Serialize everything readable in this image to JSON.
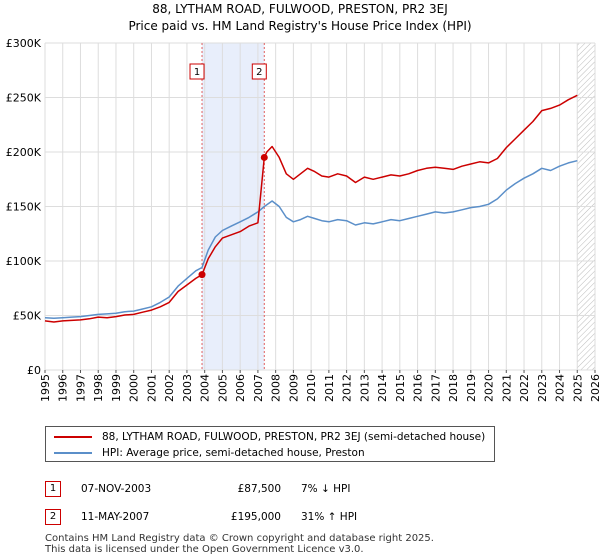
{
  "titles": {
    "line1": "88, LYTHAM ROAD, FULWOOD, PRESTON, PR2 3EJ",
    "line2": "Price paid vs. HM Land Registry's House Price Index (HPI)"
  },
  "chart_data": {
    "type": "line",
    "xlim": [
      1995.0,
      2026.0
    ],
    "ylim": [
      0,
      300000
    ],
    "y_ticks": [
      0,
      50000,
      100000,
      150000,
      200000,
      250000,
      300000
    ],
    "y_tick_labels": [
      "£0",
      "£50K",
      "£100K",
      "£150K",
      "£200K",
      "£250K",
      "£300K"
    ],
    "x_ticks": [
      1995,
      1996,
      1997,
      1998,
      1999,
      2000,
      2001,
      2002,
      2003,
      2004,
      2005,
      2006,
      2007,
      2008,
      2009,
      2010,
      2011,
      2012,
      2013,
      2014,
      2015,
      2016,
      2017,
      2018,
      2019,
      2020,
      2021,
      2022,
      2023,
      2024,
      2025,
      2026
    ],
    "x_tick_labels": [
      "1995",
      "1996",
      "1997",
      "1998",
      "1999",
      "2000",
      "2001",
      "2002",
      "2003",
      "2004",
      "2005",
      "2006",
      "2007",
      "2008",
      "2009",
      "2010",
      "2011",
      "2012",
      "2013",
      "2014",
      "2015",
      "2016",
      "2017",
      "2018",
      "2019",
      "2020",
      "2021",
      "2022",
      "2023",
      "2024",
      "2025",
      "2026"
    ],
    "grid": true,
    "shaded_region": [
      2003.85,
      2007.36
    ],
    "forecast_start": 2025.0,
    "series": [
      {
        "name": "88, LYTHAM ROAD, FULWOOD, PRESTON, PR2 3EJ (semi-detached house)",
        "color": "#cc0000",
        "x": [
          1995.0,
          1995.5,
          1996.0,
          1996.5,
          1997.0,
          1997.5,
          1998.0,
          1998.5,
          1999.0,
          1999.5,
          2000.0,
          2000.5,
          2001.0,
          2001.5,
          2002.0,
          2002.5,
          2003.0,
          2003.5,
          2003.85,
          2004.2,
          2004.6,
          2005.0,
          2005.5,
          2006.0,
          2006.5,
          2007.0,
          2007.36,
          2007.5,
          2007.8,
          2008.2,
          2008.6,
          2009.0,
          2009.4,
          2009.8,
          2010.2,
          2010.6,
          2011.0,
          2011.5,
          2012.0,
          2012.5,
          2013.0,
          2013.5,
          2014.0,
          2014.5,
          2015.0,
          2015.5,
          2016.0,
          2016.5,
          2017.0,
          2017.5,
          2018.0,
          2018.5,
          2019.0,
          2019.5,
          2020.0,
          2020.5,
          2021.0,
          2021.5,
          2022.0,
          2022.5,
          2023.0,
          2023.5,
          2024.0,
          2024.5,
          2025.0
        ],
        "values": [
          45000,
          44000,
          45000,
          45500,
          46000,
          47000,
          48500,
          48000,
          49000,
          50500,
          51000,
          53000,
          55000,
          58000,
          62000,
          72000,
          78000,
          84000,
          87500,
          102000,
          113000,
          121000,
          124000,
          127000,
          132000,
          135000,
          195000,
          200000,
          205000,
          195000,
          180000,
          175000,
          180000,
          185000,
          182000,
          178000,
          177000,
          180000,
          178000,
          172000,
          177000,
          175000,
          177000,
          179000,
          178000,
          180000,
          183000,
          185000,
          186000,
          185000,
          184000,
          187000,
          189000,
          191000,
          190000,
          194000,
          204000,
          212000,
          220000,
          228000,
          238000,
          240000,
          243000,
          248000,
          252000
        ]
      },
      {
        "name": "HPI: Average price, semi-detached house, Preston",
        "color": "#5b8fc9",
        "x": [
          1995.0,
          1995.5,
          1996.0,
          1996.5,
          1997.0,
          1997.5,
          1998.0,
          1998.5,
          1999.0,
          1999.5,
          2000.0,
          2000.5,
          2001.0,
          2001.5,
          2002.0,
          2002.5,
          2003.0,
          2003.5,
          2003.85,
          2004.2,
          2004.6,
          2005.0,
          2005.5,
          2006.0,
          2006.5,
          2007.0,
          2007.36,
          2007.8,
          2008.2,
          2008.6,
          2009.0,
          2009.4,
          2009.8,
          2010.2,
          2010.6,
          2011.0,
          2011.5,
          2012.0,
          2012.5,
          2013.0,
          2013.5,
          2014.0,
          2014.5,
          2015.0,
          2015.5,
          2016.0,
          2016.5,
          2017.0,
          2017.5,
          2018.0,
          2018.5,
          2019.0,
          2019.5,
          2020.0,
          2020.5,
          2021.0,
          2021.5,
          2022.0,
          2022.5,
          2023.0,
          2023.5,
          2024.0,
          2024.5,
          2025.0
        ],
        "values": [
          48000,
          47500,
          48000,
          48500,
          49000,
          50000,
          51000,
          51500,
          52000,
          53500,
          54000,
          56000,
          58000,
          62000,
          67000,
          77000,
          84000,
          91000,
          94000,
          110000,
          122000,
          128000,
          132000,
          136000,
          140000,
          145000,
          150000,
          155000,
          150000,
          140000,
          136000,
          138000,
          141000,
          139000,
          137000,
          136000,
          138000,
          137000,
          133000,
          135000,
          134000,
          136000,
          138000,
          137000,
          139000,
          141000,
          143000,
          145000,
          144000,
          145000,
          147000,
          149000,
          150000,
          152000,
          157000,
          165000,
          171000,
          176000,
          180000,
          185000,
          183000,
          187000,
          190000,
          192000
        ]
      }
    ],
    "sales": [
      {
        "marker": "1",
        "x": 2003.85,
        "price": 87500
      },
      {
        "marker": "2",
        "x": 2007.36,
        "price": 195000
      }
    ]
  },
  "legend": {
    "property": "88, LYTHAM ROAD, FULWOOD, PRESTON, PR2 3EJ (semi-detached house)",
    "hpi": "HPI: Average price, semi-detached house, Preston"
  },
  "sales_table": [
    {
      "marker": "1",
      "date": "07-NOV-2003",
      "price": "£87,500",
      "hpi": "7% ↓ HPI"
    },
    {
      "marker": "2",
      "date": "11-MAY-2007",
      "price": "£195,000",
      "hpi": "31% ↑ HPI"
    }
  ],
  "footer": {
    "line1": "Contains HM Land Registry data © Crown copyright and database right 2025.",
    "line2": "This data is licensed under the Open Government Licence v3.0."
  }
}
